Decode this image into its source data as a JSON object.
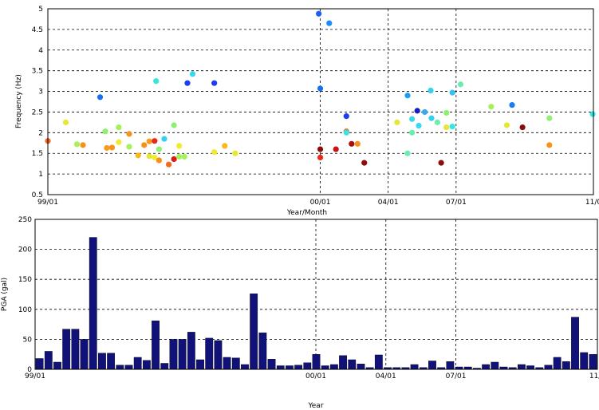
{
  "chart_data": [
    {
      "type": "scatter",
      "title": "",
      "xlabel": "Year/Month",
      "ylabel": "Frequency (Hz)",
      "xlim": [
        "1999-01",
        "2001-01"
      ],
      "ylim": [
        0.5,
        5
      ],
      "yticks": [
        0.5,
        1,
        1.5,
        2,
        2.5,
        3,
        3.5,
        4,
        4.5,
        5
      ],
      "ytick_labels": [
        "0.5",
        "1",
        "1.5",
        "2",
        "2.5",
        "3",
        "3.5",
        "4",
        "4.5",
        "5"
      ],
      "xticks": [
        "1999-01",
        "2000-01",
        "2000-04",
        "2000-07",
        "2001-01"
      ],
      "xtick_labels": [
        "99/01",
        "00/01",
        "04/01",
        "07/01",
        "11/0"
      ],
      "grid": true,
      "color_scale": "jet",
      "points": [
        {
          "x": "1999-01-01",
          "y": 1.8,
          "c": "#f4682a"
        },
        {
          "x": "1999-01-25",
          "y": 2.25,
          "c": "#e6e636"
        },
        {
          "x": "1999-02-09",
          "y": 1.72,
          "c": "#a6f05a"
        },
        {
          "x": "1999-02-17",
          "y": 1.7,
          "c": "#f8901c"
        },
        {
          "x": "1999-03-12",
          "y": 2.86,
          "c": "#1a6ef4"
        },
        {
          "x": "1999-03-19",
          "y": 2.03,
          "c": "#8ef070"
        },
        {
          "x": "1999-03-21",
          "y": 1.63,
          "c": "#f89a1e"
        },
        {
          "x": "1999-03-28",
          "y": 1.64,
          "c": "#f8901c"
        },
        {
          "x": "1999-04-06",
          "y": 2.13,
          "c": "#a6f05a"
        },
        {
          "x": "1999-04-06",
          "y": 1.77,
          "c": "#f0ea30"
        },
        {
          "x": "1999-04-20",
          "y": 1.66,
          "c": "#a6f05a"
        },
        {
          "x": "1999-04-20",
          "y": 1.97,
          "c": "#f8901c"
        },
        {
          "x": "1999-05-02",
          "y": 1.45,
          "c": "#f8b81c"
        },
        {
          "x": "1999-05-10",
          "y": 1.7,
          "c": "#f8901c"
        },
        {
          "x": "1999-05-17",
          "y": 1.43,
          "c": "#e6e636"
        },
        {
          "x": "1999-05-17",
          "y": 1.79,
          "c": "#f89a1e"
        },
        {
          "x": "1999-05-24",
          "y": 1.4,
          "c": "#f0ea30"
        },
        {
          "x": "1999-05-24",
          "y": 1.8,
          "c": "#e82a18"
        },
        {
          "x": "1999-05-26",
          "y": 3.25,
          "c": "#3ae6d8"
        },
        {
          "x": "1999-05-30",
          "y": 1.33,
          "c": "#f8901c"
        },
        {
          "x": "1999-05-30",
          "y": 1.6,
          "c": "#8ef070"
        },
        {
          "x": "1999-06-06",
          "y": 1.85,
          "c": "#38d0f0"
        },
        {
          "x": "1999-06-12",
          "y": 1.23,
          "c": "#f46a1e"
        },
        {
          "x": "1999-06-19",
          "y": 1.36,
          "c": "#d81e14"
        },
        {
          "x": "1999-06-19",
          "y": 2.18,
          "c": "#8ef070"
        },
        {
          "x": "1999-06-26",
          "y": 1.68,
          "c": "#f0ea30"
        },
        {
          "x": "1999-06-26",
          "y": 1.42,
          "c": "#a6f05a"
        },
        {
          "x": "1999-07-03",
          "y": 1.42,
          "c": "#a6f05a"
        },
        {
          "x": "1999-07-07",
          "y": 3.2,
          "c": "#1a3ef0"
        },
        {
          "x": "1999-07-14",
          "y": 3.42,
          "c": "#38d8f0"
        },
        {
          "x": "1999-08-12",
          "y": 3.2,
          "c": "#1a3ef0"
        },
        {
          "x": "1999-08-12",
          "y": 1.53,
          "c": "#f0ea30"
        },
        {
          "x": "1999-08-26",
          "y": 1.68,
          "c": "#f8b81c"
        },
        {
          "x": "1999-09-09",
          "y": 1.5,
          "c": "#e6e636"
        },
        {
          "x": "1999-12-30",
          "y": 4.88,
          "c": "#1a5ef4"
        },
        {
          "x": "2000-01-01",
          "y": 3.07,
          "c": "#1a6ef4"
        },
        {
          "x": "2000-01-01",
          "y": 1.6,
          "c": "#8a0e0e"
        },
        {
          "x": "2000-01-01",
          "y": 1.4,
          "c": "#e82a18"
        },
        {
          "x": "2000-01-13",
          "y": 4.65,
          "c": "#1a8ef4"
        },
        {
          "x": "2000-01-22",
          "y": 1.6,
          "c": "#c81414"
        },
        {
          "x": "2000-02-05",
          "y": 2.4,
          "c": "#1a3ef0"
        },
        {
          "x": "2000-02-05",
          "y": 2.03,
          "c": "#f4682a"
        },
        {
          "x": "2000-02-05",
          "y": 2.0,
          "c": "#38e6e0"
        },
        {
          "x": "2000-02-12",
          "y": 1.73,
          "c": "#a81010"
        },
        {
          "x": "2000-02-20",
          "y": 1.73,
          "c": "#f8901c"
        },
        {
          "x": "2000-02-29",
          "y": 1.27,
          "c": "#8a0e0e"
        },
        {
          "x": "2000-04-13",
          "y": 2.25,
          "c": "#e6e636"
        },
        {
          "x": "2000-04-27",
          "y": 2.9,
          "c": "#1a9ef4"
        },
        {
          "x": "2000-04-27",
          "y": 1.5,
          "c": "#6aeeb0"
        },
        {
          "x": "2000-05-03",
          "y": 2.33,
          "c": "#38d8f0"
        },
        {
          "x": "2000-05-03",
          "y": 2.0,
          "c": "#6aeeb0"
        },
        {
          "x": "2000-05-10",
          "y": 2.53,
          "c": "#1a1eb8"
        },
        {
          "x": "2000-05-12",
          "y": 2.17,
          "c": "#38d8f0"
        },
        {
          "x": "2000-05-20",
          "y": 2.5,
          "c": "#3aa8f0"
        },
        {
          "x": "2000-05-28",
          "y": 3.02,
          "c": "#38d0f0"
        },
        {
          "x": "2000-05-29",
          "y": 2.35,
          "c": "#38d0f0"
        },
        {
          "x": "2000-06-06",
          "y": 2.25,
          "c": "#6aeeb0"
        },
        {
          "x": "2000-06-11",
          "y": 1.27,
          "c": "#8a0e0e"
        },
        {
          "x": "2000-06-18",
          "y": 2.13,
          "c": "#e6e636"
        },
        {
          "x": "2000-06-18",
          "y": 2.48,
          "c": "#8ef070"
        },
        {
          "x": "2000-06-26",
          "y": 2.97,
          "c": "#38c0f0"
        },
        {
          "x": "2000-06-26",
          "y": 2.15,
          "c": "#38e6e0"
        },
        {
          "x": "2000-07-07",
          "y": 3.17,
          "c": "#6aeeb0"
        },
        {
          "x": "2000-08-17",
          "y": 2.63,
          "c": "#a6f05a"
        },
        {
          "x": "2000-09-07",
          "y": 2.18,
          "c": "#e6e636"
        },
        {
          "x": "2000-09-14",
          "y": 2.67,
          "c": "#1a7ef4"
        },
        {
          "x": "2000-09-28",
          "y": 2.13,
          "c": "#8a0e0e"
        },
        {
          "x": "2000-11-03",
          "y": 2.35,
          "c": "#8ef070"
        },
        {
          "x": "2000-11-03",
          "y": 1.7,
          "c": "#f8901c"
        },
        {
          "x": "2000-12-31",
          "y": 2.45,
          "c": "#38e6e0"
        }
      ]
    },
    {
      "type": "bar",
      "title": "",
      "xlabel": "Year",
      "ylabel": "PGA (gal)",
      "xlim": [
        "1999-01",
        "2001-01"
      ],
      "ylim": [
        0,
        250
      ],
      "yticks": [
        0,
        50,
        100,
        150,
        200,
        250
      ],
      "ytick_labels": [
        "0",
        "50",
        "100",
        "150",
        "200",
        "250"
      ],
      "xticks": [
        "1999-01",
        "2000-01",
        "2000-04",
        "2000-07",
        "2001-01"
      ],
      "xtick_labels": [
        "99/01",
        "00/01",
        "04/01",
        "07/01",
        "11/0"
      ],
      "grid": true,
      "bar_color": "#10127a",
      "values": [
        18,
        30,
        12,
        67,
        67,
        50,
        220,
        27,
        27,
        7,
        7,
        20,
        15,
        81,
        10,
        50,
        50,
        62,
        16,
        52,
        48,
        20,
        19,
        8,
        126,
        61,
        17,
        6,
        6,
        7,
        11,
        25,
        6,
        8,
        23,
        16,
        9,
        3,
        24,
        3,
        3,
        3,
        8,
        3,
        14,
        3,
        13,
        4,
        4,
        2,
        8,
        12,
        4,
        3,
        8,
        6,
        3,
        7,
        20,
        13,
        87,
        28,
        25
      ]
    }
  ]
}
